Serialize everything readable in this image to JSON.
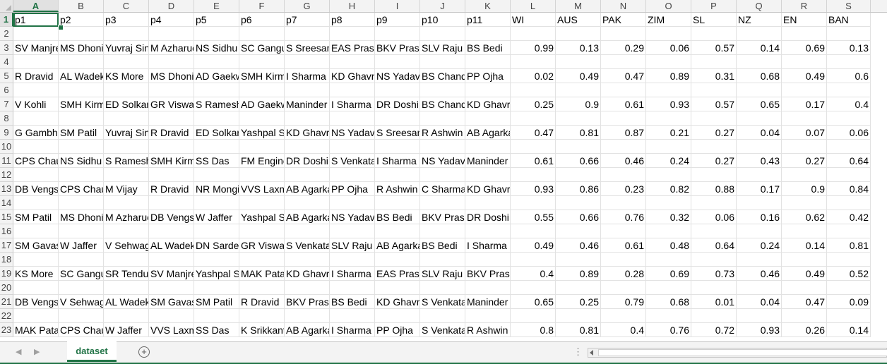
{
  "sheet": {
    "columns": [
      "A",
      "B",
      "C",
      "D",
      "E",
      "F",
      "G",
      "H",
      "I",
      "J",
      "K",
      "L",
      "M",
      "N",
      "O",
      "P",
      "Q",
      "R",
      "S"
    ],
    "selected_column": "A",
    "selected_row": "1",
    "rows": [
      {
        "num": "1",
        "cells": [
          "p1",
          "p2",
          "p3",
          "p4",
          "p5",
          "p6",
          "p7",
          "p8",
          "p9",
          "p10",
          "p11",
          "WI",
          "AUS",
          "PAK",
          "ZIM",
          "SL",
          "NZ",
          "EN",
          "BAN"
        ]
      },
      {
        "num": "2",
        "cells": []
      },
      {
        "num": "3",
        "cells": [
          "SV Manjre",
          "MS Dhoni",
          "Yuvraj Sin",
          "M Azharuc",
          "NS Sidhu",
          "SC Gangul",
          "S Sreesant",
          "EAS Prasal",
          "BKV Prasa",
          "SLV Raju",
          "BS Bedi",
          "0.99",
          "0.13",
          "0.29",
          "0.06",
          "0.57",
          "0.14",
          "0.69",
          "0.13"
        ]
      },
      {
        "num": "4",
        "cells": []
      },
      {
        "num": "5",
        "cells": [
          "R Dravid",
          "AL Wadek",
          "KS More",
          "MS Dhoni",
          "AD Gaekw",
          "SMH Kirm",
          "I Sharma",
          "KD Ghavri",
          "NS Yadav",
          "BS Chandr",
          "PP Ojha",
          "0.02",
          "0.49",
          "0.47",
          "0.89",
          "0.31",
          "0.68",
          "0.49",
          "0.6"
        ]
      },
      {
        "num": "6",
        "cells": []
      },
      {
        "num": "7",
        "cells": [
          "V Kohli",
          "SMH Kirm",
          "ED Solkar",
          "GR Viswar",
          "S Ramesh",
          "AD Gaekw",
          "Maninder",
          "I Sharma",
          "DR Doshi",
          "BS Chandr",
          "KD Ghavri",
          "0.25",
          "0.9",
          "0.61",
          "0.93",
          "0.57",
          "0.65",
          "0.17",
          "0.4"
        ]
      },
      {
        "num": "8",
        "cells": []
      },
      {
        "num": "9",
        "cells": [
          "G Gambhi",
          "SM Patil",
          "Yuvraj Sin",
          "R Dravid",
          "ED Solkar",
          "Yashpal Sh",
          "KD Ghavri",
          "NS Yadav",
          "S Sreesant",
          "R Ashwin",
          "AB Agarka",
          "0.47",
          "0.81",
          "0.87",
          "0.21",
          "0.27",
          "0.04",
          "0.07",
          "0.06"
        ]
      },
      {
        "num": "10",
        "cells": []
      },
      {
        "num": "11",
        "cells": [
          "CPS Chauh",
          "NS Sidhu",
          "S Ramesh",
          "SMH Kirm",
          "SS Das",
          "FM Engine",
          "DR Doshi",
          "S Venkata",
          "I Sharma",
          "NS Yadav",
          "Maninder",
          "0.61",
          "0.66",
          "0.46",
          "0.24",
          "0.27",
          "0.43",
          "0.27",
          "0.64"
        ]
      },
      {
        "num": "12",
        "cells": []
      },
      {
        "num": "13",
        "cells": [
          "DB Vengsa",
          "CPS Chauh",
          "M Vijay",
          "R Dravid",
          "NR Mongi",
          "VVS Laxm",
          "AB Agarka",
          "PP Ojha",
          "R Ashwin",
          "C Sharma",
          "KD Ghavri",
          "0.93",
          "0.86",
          "0.23",
          "0.82",
          "0.88",
          "0.17",
          "0.9",
          "0.84"
        ]
      },
      {
        "num": "14",
        "cells": []
      },
      {
        "num": "15",
        "cells": [
          "SM Patil",
          "MS Dhoni",
          "M Azharuc",
          "DB Vengsa",
          "W Jaffer",
          "Yashpal Sh",
          "AB Agarka",
          "NS Yadav",
          "BS Bedi",
          "BKV Prasa",
          "DR Doshi",
          "0.55",
          "0.66",
          "0.76",
          "0.32",
          "0.06",
          "0.16",
          "0.62",
          "0.42"
        ]
      },
      {
        "num": "16",
        "cells": []
      },
      {
        "num": "17",
        "cells": [
          "SM Gavasl",
          "W Jaffer",
          "V Sehwag",
          "AL Wadek",
          "DN Sardes",
          "GR Viswar",
          "S Venkata",
          "SLV Raju",
          "AB Agarka",
          "BS Bedi",
          "I Sharma",
          "0.49",
          "0.46",
          "0.61",
          "0.48",
          "0.64",
          "0.24",
          "0.14",
          "0.81"
        ]
      },
      {
        "num": "18",
        "cells": []
      },
      {
        "num": "19",
        "cells": [
          "KS More",
          "SC Gangul",
          "SR Tendul",
          "SV Manjre",
          "Yashpal Sh",
          "MAK Patal",
          "KD Ghavri",
          "I Sharma",
          "EAS Prasal",
          "SLV Raju",
          "BKV Prasa",
          "0.4",
          "0.89",
          "0.28",
          "0.69",
          "0.73",
          "0.46",
          "0.49",
          "0.52"
        ]
      },
      {
        "num": "20",
        "cells": []
      },
      {
        "num": "21",
        "cells": [
          "DB Vengsa",
          "V Sehwag",
          "AL Wadek",
          "SM Gavasl",
          "SM Patil",
          "R Dravid",
          "BKV Prasa",
          "BS Bedi",
          "KD Ghavri",
          "S Venkata",
          "Maninder",
          "0.65",
          "0.25",
          "0.79",
          "0.68",
          "0.01",
          "0.04",
          "0.47",
          "0.09"
        ]
      },
      {
        "num": "22",
        "cells": []
      },
      {
        "num": "23",
        "cells": [
          "MAK Patal",
          "CPS Chauh",
          "W Jaffer",
          "VVS Laxm",
          "SS Das",
          "K Srikkant",
          "AB Agarka",
          "I Sharma",
          "PP Ojha",
          "S Venkata",
          "R Ashwin",
          "0.8",
          "0.81",
          "0.4",
          "0.76",
          "0.72",
          "0.93",
          "0.26",
          "0.14"
        ]
      }
    ]
  },
  "tabs": {
    "active_sheet": "dataset",
    "add_sheet_symbol": "+",
    "nav_prev": "◀",
    "nav_next": "▶",
    "overflow": "⋮"
  },
  "colors": {
    "accent": "#217346",
    "gridline": "#e2e2e2",
    "header_bg": "#f3f3f3"
  }
}
